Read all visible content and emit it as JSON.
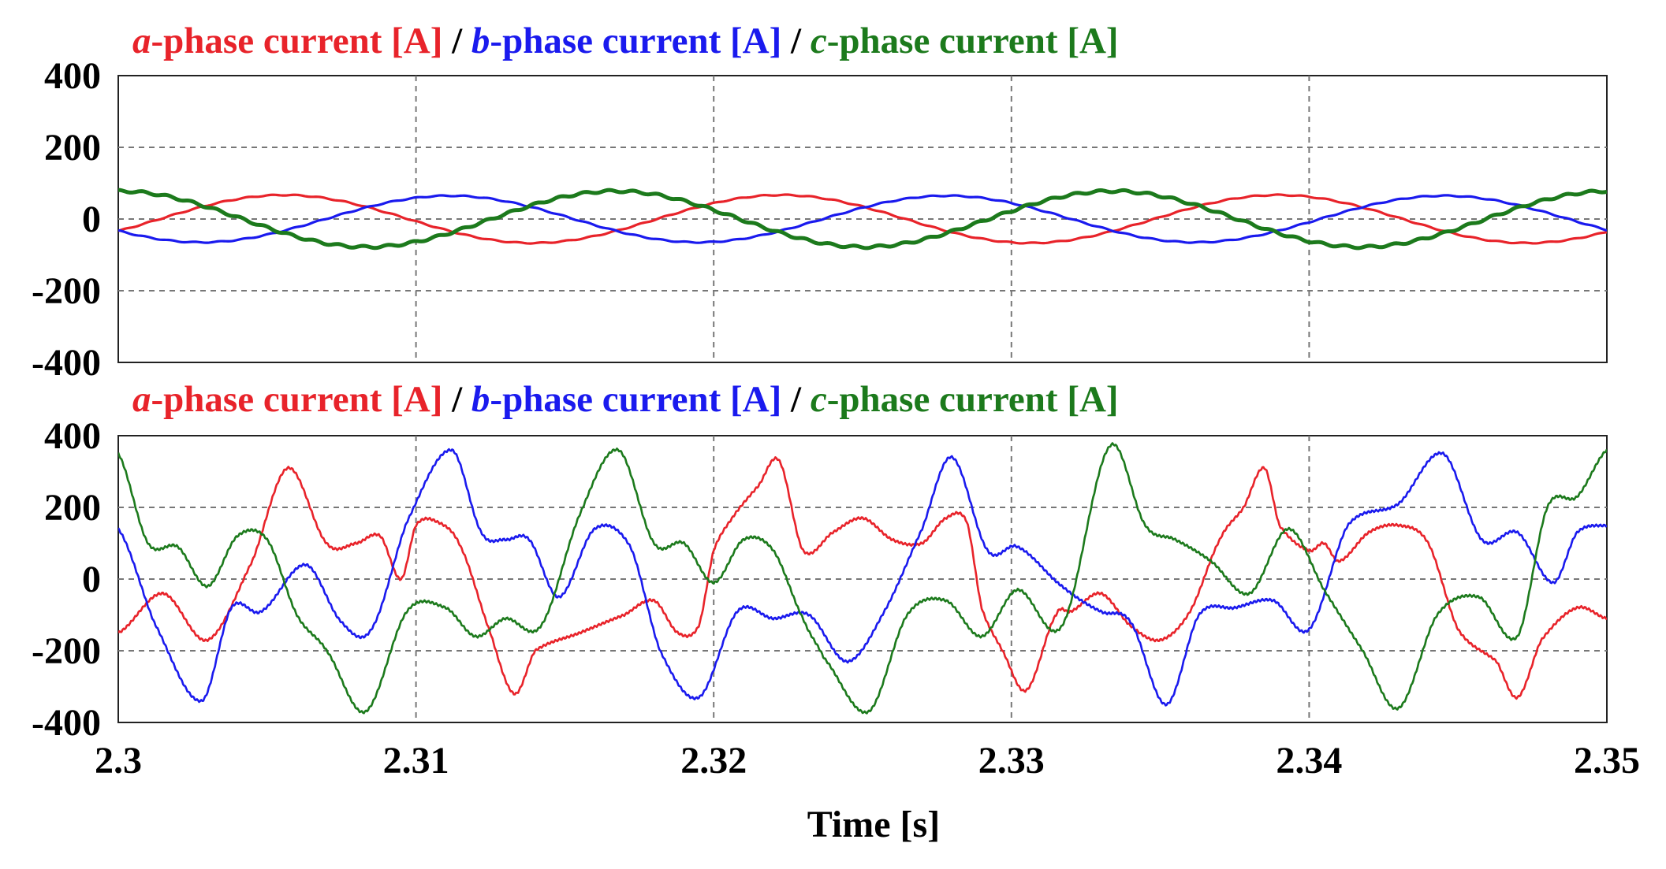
{
  "chart_data": [
    {
      "type": "line",
      "legend": [
        {
          "prefix": "a",
          "label": "-phase current [A]",
          "color": "#e8232a"
        },
        {
          "prefix": "b",
          "label": "-phase current [A]",
          "color": "#1a1aee"
        },
        {
          "prefix": "c",
          "label": "-phase current [A]",
          "color": "#1c7a1c"
        }
      ],
      "separator": " / ",
      "xlim": [
        2.3,
        2.35
      ],
      "ylim": [
        -400,
        400
      ],
      "yticks": [
        "400",
        "200",
        "0",
        "-200",
        "-400"
      ],
      "ytick_values": [
        400,
        200,
        0,
        -200,
        -400
      ],
      "grid": true,
      "series": [
        {
          "name": "a-phase current [A]",
          "color": "#e8232a",
          "amplitude": 67,
          "period": 0.0167,
          "phase_deg": -30
        },
        {
          "name": "b-phase current [A]",
          "color": "#1a1aee",
          "amplitude": 65,
          "period": 0.0167,
          "phase_deg": -150
        },
        {
          "name": "c-phase current [A]",
          "color": "#1c7a1c",
          "amplitude": 78,
          "period": 0.0167,
          "phase_deg": 90
        }
      ]
    },
    {
      "type": "line",
      "legend": [
        {
          "prefix": "a",
          "label": "-phase current [A]",
          "color": "#e8232a"
        },
        {
          "prefix": "b",
          "label": "-phase current [A]",
          "color": "#1a1aee"
        },
        {
          "prefix": "c",
          "label": "-phase current [A]",
          "color": "#1c7a1c"
        }
      ],
      "separator": " / ",
      "xlim": [
        2.3,
        2.35
      ],
      "ylim": [
        -400,
        400
      ],
      "yticks": [
        "400",
        "200",
        "0",
        "-200",
        "-400"
      ],
      "ytick_values": [
        400,
        200,
        0,
        -200,
        -400
      ],
      "xticks": [
        "2.3",
        "2.31",
        "2.32",
        "2.33",
        "2.34",
        "2.35"
      ],
      "xtick_values": [
        2.3,
        2.31,
        2.32,
        2.33,
        2.34,
        2.35
      ],
      "xlabel": "Time [s]",
      "grid": true,
      "series": [
        {
          "name": "a-phase current [A]",
          "color": "#e8232a",
          "x": [
            2.3,
            2.3015,
            2.303,
            2.3045,
            2.3057,
            2.307,
            2.308,
            2.3088,
            2.3095,
            2.31,
            2.3107,
            2.3115,
            2.3125,
            2.3133,
            2.314,
            2.3155,
            2.317,
            2.318,
            2.3188,
            2.3195,
            2.32,
            2.3207,
            2.3215,
            2.3222,
            2.323,
            2.324,
            2.325,
            2.326,
            2.327,
            2.3278,
            2.3285,
            2.329,
            2.3297,
            2.3305,
            2.3315,
            2.332,
            2.333,
            2.334,
            2.335,
            2.336,
            2.337,
            2.3378,
            2.3385,
            2.339,
            2.34,
            2.3405,
            2.341,
            2.342,
            2.343,
            2.344,
            2.345,
            2.3463,
            2.347,
            2.3478,
            2.349,
            2.35
          ],
          "y": [
            -150,
            -40,
            -170,
            50,
            310,
            100,
            100,
            120,
            0,
            150,
            160,
            90,
            -150,
            -320,
            -200,
            -150,
            -100,
            -60,
            -150,
            -130,
            80,
            180,
            260,
            330,
            80,
            130,
            170,
            110,
            100,
            170,
            160,
            -80,
            -200,
            -310,
            -100,
            -90,
            -40,
            -130,
            -170,
            -90,
            110,
            200,
            310,
            150,
            80,
            100,
            50,
            130,
            150,
            100,
            -140,
            -230,
            -330,
            -170,
            -80,
            -110
          ]
        },
        {
          "name": "b-phase current [A]",
          "color": "#1a1aee",
          "x": [
            2.3,
            2.3012,
            2.3028,
            2.3038,
            2.3048,
            2.3063,
            2.3075,
            2.3085,
            2.3097,
            2.3112,
            2.3122,
            2.313,
            2.3138,
            2.3148,
            2.316,
            2.3172,
            2.3182,
            2.3195,
            2.3208,
            2.322,
            2.3232,
            2.3245,
            2.3258,
            2.327,
            2.328,
            2.3292,
            2.3302,
            2.3317,
            2.333,
            2.334,
            2.3352,
            2.3363,
            2.3375,
            2.3388,
            2.34,
            2.3413,
            2.343,
            2.3445,
            2.3458,
            2.347,
            2.3482,
            2.349,
            2.35
          ],
          "y": [
            140,
            -120,
            -340,
            -80,
            -90,
            40,
            -120,
            -140,
            160,
            360,
            130,
            110,
            110,
            -50,
            140,
            90,
            -200,
            -330,
            -90,
            -110,
            -100,
            -230,
            -80,
            140,
            340,
            80,
            90,
            -20,
            -90,
            -120,
            -350,
            -100,
            -80,
            -60,
            -140,
            150,
            210,
            350,
            110,
            130,
            -10,
            130,
            150
          ]
        },
        {
          "name": "c-phase current [A]",
          "color": "#1c7a1c",
          "x": [
            2.3,
            2.301,
            2.302,
            2.303,
            2.304,
            2.305,
            2.306,
            2.307,
            2.3083,
            2.3097,
            2.311,
            2.312,
            2.313,
            2.3142,
            2.3155,
            2.3168,
            2.318,
            2.319,
            2.32,
            2.321,
            2.322,
            2.323,
            2.3237,
            2.3252,
            2.3265,
            2.3278,
            2.329,
            2.3302,
            2.3317,
            2.3333,
            2.3345,
            2.3355,
            2.3367,
            2.338,
            2.3393,
            2.3405,
            2.3418,
            2.343,
            2.3443,
            2.3457,
            2.347,
            2.348,
            2.349,
            2.35
          ],
          "y": [
            350,
            100,
            90,
            -20,
            120,
            110,
            -100,
            -200,
            -370,
            -90,
            -80,
            -160,
            -110,
            -130,
            180,
            360,
            100,
            100,
            -10,
            110,
            80,
            -110,
            -220,
            -370,
            -100,
            -60,
            -160,
            -30,
            -130,
            370,
            150,
            110,
            50,
            -40,
            140,
            -30,
            -200,
            -360,
            -100,
            -50,
            -160,
            200,
            230,
            360
          ]
        }
      ]
    }
  ]
}
